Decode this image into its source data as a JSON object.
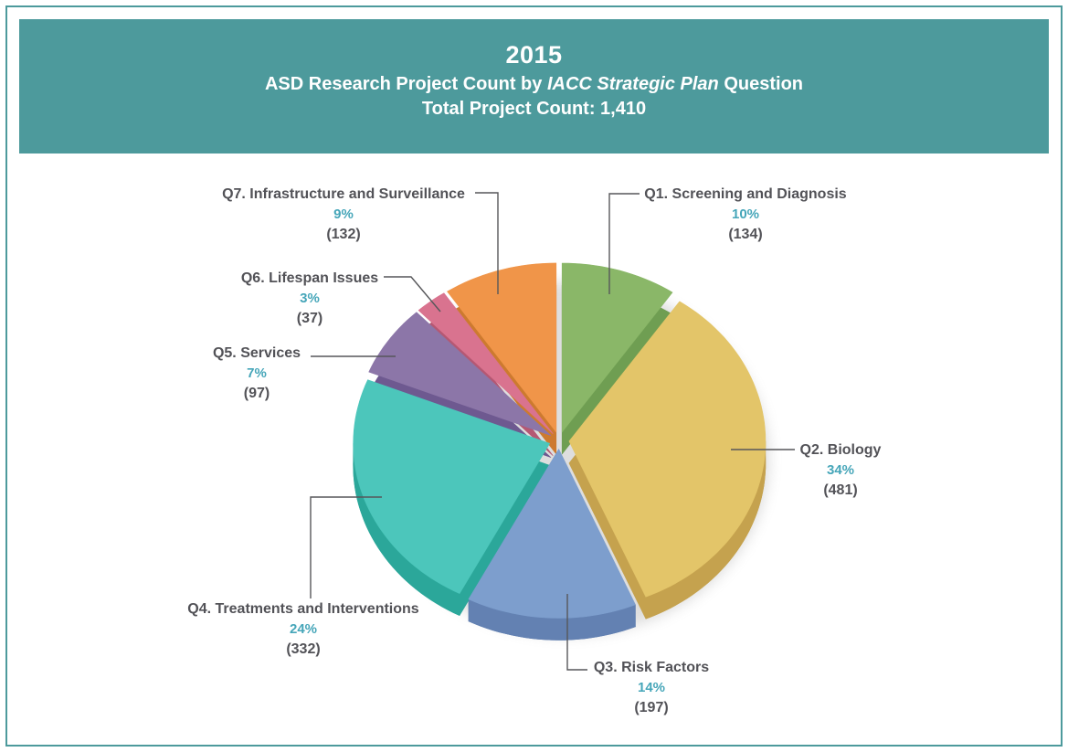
{
  "header": {
    "year": "2015",
    "subtitle_prefix": "ASD Research Project Count by ",
    "subtitle_italic": "IACC Strategic Plan",
    "subtitle_suffix": " Question",
    "total_label": "Total Project Count: 1,410",
    "banner_color": "#4d9a9c",
    "text_color": "#ffffff"
  },
  "chart_data": {
    "type": "pie",
    "title": "2015 ASD Research Project Count by IACC Strategic Plan Question",
    "total_projects": 1410,
    "start_angle_deg": 0,
    "direction": "clockwise",
    "style": "3d-exploded",
    "legend_position": "outside-labels-with-leader-lines",
    "label_color": "#525257",
    "percent_color": "#46a6b9",
    "leader_line_color": "#57575a",
    "slices": [
      {
        "id": "q1",
        "label": "Q1. Screening and Diagnosis",
        "percent": "10%",
        "count": "(134)",
        "value": 134,
        "color": "#8ab768",
        "side_color": "#6f9e52"
      },
      {
        "id": "q2",
        "label": "Q2. Biology",
        "percent": "34%",
        "count": "(481)",
        "value": 481,
        "color": "#e3c569",
        "side_color": "#c5a24e"
      },
      {
        "id": "q3",
        "label": "Q3. Risk Factors",
        "percent": "14%",
        "count": "(197)",
        "value": 197,
        "color": "#7d9ecd",
        "side_color": "#6381b2"
      },
      {
        "id": "q4",
        "label": "Q4. Treatments and Interventions",
        "percent": "24%",
        "count": "(332)",
        "value": 332,
        "color": "#4cc6bb",
        "side_color": "#2ba79a"
      },
      {
        "id": "q5",
        "label": "Q5. Services",
        "percent": "7%",
        "count": "(97)",
        "value": 97,
        "color": "#8c76a8",
        "side_color": "#6e5990"
      },
      {
        "id": "q6",
        "label": "Q6. Lifespan Issues",
        "percent": "3%",
        "count": "(37)",
        "value": 37,
        "color": "#d9738f",
        "side_color": "#b55873"
      },
      {
        "id": "q7",
        "label": "Q7. Infrastructure and Surveillance",
        "percent": "9%",
        "count": "(132)",
        "value": 132,
        "color": "#f09549",
        "side_color": "#cd7a2f"
      }
    ]
  }
}
